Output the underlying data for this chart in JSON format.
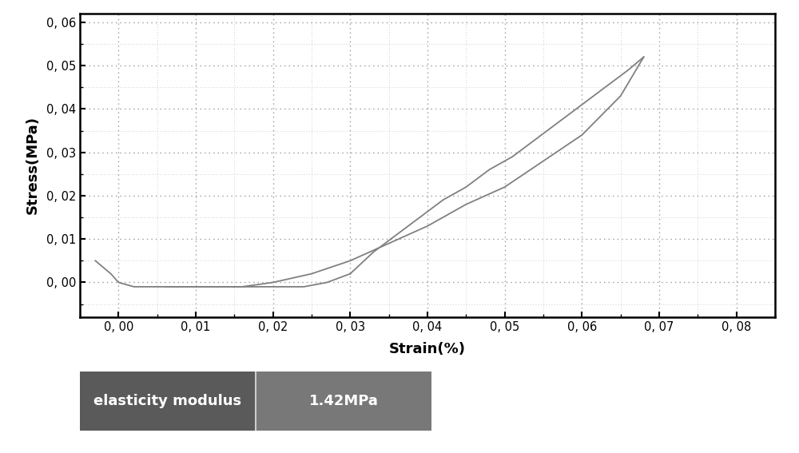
{
  "title": "",
  "xlabel": "Strain(%)",
  "ylabel": "Stress(MPa)",
  "xlim": [
    -0.005,
    0.085
  ],
  "ylim": [
    -0.008,
    0.062
  ],
  "xticks": [
    0.0,
    0.01,
    0.02,
    0.03,
    0.04,
    0.05,
    0.06,
    0.07,
    0.08
  ],
  "yticks": [
    0.0,
    0.01,
    0.02,
    0.03,
    0.04,
    0.05,
    0.06
  ],
  "curve_color": "#808080",
  "background_color": "#ffffff",
  "legend_label": "elasticity modulus",
  "legend_value": "1.42MPa",
  "legend_bg_label": "#5a5a5a",
  "legend_bg_value": "#787878",
  "loading_x": [
    -0.003,
    -0.001,
    0.0,
    0.002,
    0.005,
    0.008,
    0.01,
    0.013,
    0.016,
    0.02,
    0.025,
    0.03,
    0.035,
    0.04,
    0.045,
    0.05,
    0.055,
    0.06,
    0.065,
    0.068
  ],
  "loading_y": [
    0.005,
    0.002,
    0.0,
    -0.001,
    -0.001,
    -0.001,
    -0.001,
    -0.001,
    -0.001,
    0.0,
    0.002,
    0.005,
    0.009,
    0.013,
    0.018,
    0.022,
    0.028,
    0.034,
    0.043,
    0.052
  ],
  "unload_up_x": [
    0.068,
    0.066,
    0.063,
    0.06,
    0.057,
    0.054,
    0.051,
    0.048,
    0.045,
    0.042,
    0.039,
    0.036,
    0.033,
    0.03
  ],
  "unload_up_y": [
    0.052,
    0.049,
    0.045,
    0.041,
    0.037,
    0.033,
    0.029,
    0.026,
    0.022,
    0.019,
    0.015,
    0.011,
    0.007,
    0.002
  ],
  "unload_low_x": [
    0.03,
    0.027,
    0.024,
    0.021,
    0.018,
    0.015,
    0.012,
    0.009,
    0.006
  ],
  "unload_low_y": [
    0.002,
    0.0,
    -0.001,
    -0.001,
    -0.001,
    -0.001,
    -0.001,
    -0.001,
    -0.001
  ]
}
